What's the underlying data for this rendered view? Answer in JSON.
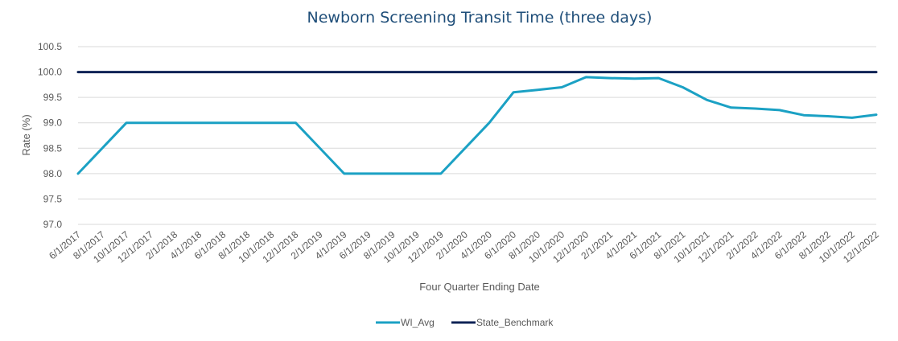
{
  "chart_data": {
    "type": "line",
    "title": "Newborn Screening Transit Time (three days)",
    "xlabel": "Four Quarter Ending Date",
    "ylabel": "Rate (%)",
    "ylim": [
      97.0,
      100.5
    ],
    "yticks": [
      "97.0",
      "97.5",
      "98.0",
      "98.5",
      "99.0",
      "99.5",
      "100.0",
      "100.5"
    ],
    "grid": true,
    "legend_position": "bottom",
    "x": [
      "6/1/2017",
      "8/1/2017",
      "10/1/2017",
      "12/1/2017",
      "2/1/2018",
      "4/1/2018",
      "6/1/2018",
      "8/1/2018",
      "10/1/2018",
      "12/1/2018",
      "2/1/2019",
      "4/1/2019",
      "6/1/2019",
      "8/1/2019",
      "10/1/2019",
      "12/1/2019",
      "2/1/2020",
      "4/1/2020",
      "6/1/2020",
      "8/1/2020",
      "10/1/2020",
      "12/1/2020",
      "2/1/2021",
      "4/1/2021",
      "6/1/2021",
      "8/1/2021",
      "10/1/2021",
      "12/1/2021",
      "2/1/2022",
      "4/1/2022",
      "6/1/2022",
      "8/1/2022",
      "10/1/2022",
      "12/1/2022"
    ],
    "series": [
      {
        "name": "WI_Avg",
        "color": "#1ba1c4",
        "points": [
          [
            "6/1/2017",
            98.0
          ],
          [
            "10/1/2017",
            99.0
          ],
          [
            "12/1/2018",
            99.0
          ],
          [
            "4/1/2019",
            98.0
          ],
          [
            "12/1/2019",
            98.0
          ],
          [
            "4/1/2020",
            99.0
          ],
          [
            "6/1/2020",
            99.6
          ],
          [
            "8/1/2020",
            99.65
          ],
          [
            "10/1/2020",
            99.7
          ],
          [
            "12/1/2020",
            99.9
          ],
          [
            "2/1/2021",
            99.88
          ],
          [
            "4/1/2021",
            99.87
          ],
          [
            "6/1/2021",
            99.88
          ],
          [
            "8/1/2021",
            99.7
          ],
          [
            "10/1/2021",
            99.45
          ],
          [
            "12/1/2021",
            99.3
          ],
          [
            "2/1/2022",
            99.28
          ],
          [
            "4/1/2022",
            99.25
          ],
          [
            "6/1/2022",
            99.15
          ],
          [
            "8/1/2022",
            99.13
          ],
          [
            "10/1/2022",
            99.1
          ],
          [
            "12/1/2022",
            99.16
          ]
        ]
      },
      {
        "name": "State_Benchmark",
        "color": "#0e2356",
        "points": [
          [
            "6/1/2017",
            100.0
          ],
          [
            "12/1/2022",
            100.0
          ]
        ]
      }
    ]
  }
}
